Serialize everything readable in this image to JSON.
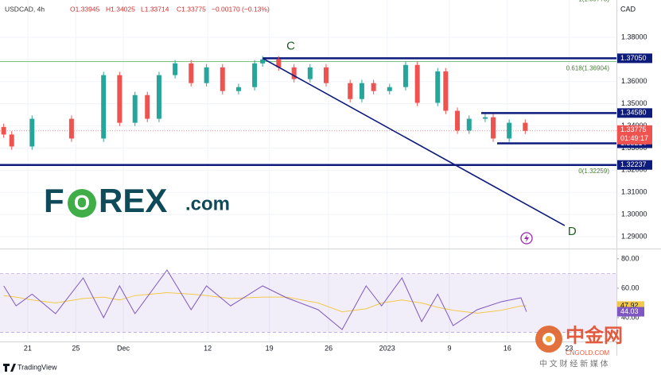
{
  "header": {
    "symbol": "USDCAD, 4h",
    "open": "O1.33945",
    "high": "H1.34025",
    "low": "L1.33714",
    "close": "C1.33775",
    "change": "−0.00170 (−0.13%)"
  },
  "currency": "CAD",
  "logo": {
    "f": "F",
    "o": "O",
    "rex": "REX",
    "com": ".com"
  },
  "watermark": {
    "name": "中金网",
    "site": "CNGOLD.COM",
    "tagline": "中 文 财 经 新 媒 体"
  },
  "tradingview": "TradingView",
  "chart_data": [
    {
      "type": "candlestick",
      "x": [
        0.6,
        1.9,
        5.2,
        11.6,
        16.8,
        19.4,
        21.9,
        23.9,
        25.8,
        28.4,
        31,
        33.5,
        36.1,
        38.7,
        41.3,
        42.6,
        45.2,
        47.7,
        50.3,
        52.9,
        56.8,
        58.7,
        60.6,
        63.2,
        65.8,
        67.7,
        71,
        72.3,
        74.2,
        76.1,
        78.7,
        80,
        82.6,
        85.2
      ],
      "open": [
        1.3395,
        1.3361,
        1.3307,
        1.3432,
        1.3343,
        1.3629,
        1.3414,
        1.3539,
        1.3432,
        1.3629,
        1.3682,
        1.3593,
        1.3664,
        1.3557,
        1.3575,
        1.3682,
        1.37,
        1.3664,
        1.3611,
        1.3664,
        1.3593,
        1.3521,
        1.3593,
        1.3557,
        1.3575,
        1.3675,
        1.3504,
        1.3646,
        1.3468,
        1.3379,
        1.3432,
        1.3439,
        1.3343,
        1.3414
      ],
      "high": [
        1.341,
        1.3376,
        1.3447,
        1.3447,
        1.3644,
        1.3644,
        1.3554,
        1.3554,
        1.3644,
        1.3697,
        1.3697,
        1.3679,
        1.3679,
        1.359,
        1.3697,
        1.3715,
        1.3715,
        1.3679,
        1.3679,
        1.3679,
        1.3608,
        1.3608,
        1.3608,
        1.359,
        1.369,
        1.369,
        1.3661,
        1.3661,
        1.3483,
        1.3447,
        1.3454,
        1.3454,
        1.3429,
        1.3429
      ],
      "low": [
        1.3346,
        1.3292,
        1.3292,
        1.3328,
        1.3328,
        1.3399,
        1.3399,
        1.3417,
        1.3417,
        1.3614,
        1.3578,
        1.3578,
        1.3542,
        1.3542,
        1.356,
        1.3667,
        1.3649,
        1.3596,
        1.3596,
        1.3578,
        1.3506,
        1.3506,
        1.3542,
        1.3542,
        1.356,
        1.3489,
        1.3489,
        1.3453,
        1.3364,
        1.3364,
        1.3417,
        1.3328,
        1.3328,
        1.3363
      ],
      "close": [
        1.3361,
        1.3307,
        1.3432,
        1.3343,
        1.3629,
        1.3414,
        1.3539,
        1.3432,
        1.3629,
        1.3682,
        1.3593,
        1.3664,
        1.3557,
        1.3575,
        1.3682,
        1.37,
        1.3664,
        1.3611,
        1.3664,
        1.3593,
        1.3521,
        1.3593,
        1.3557,
        1.3575,
        1.3675,
        1.3504,
        1.3646,
        1.3468,
        1.3379,
        1.3432,
        1.3439,
        1.3343,
        1.3414,
        1.33775
      ],
      "up_color": "#26a69a",
      "down_color": "#ef5350",
      "countdown": "01:49:17",
      "xlim": [
        0,
        100
      ],
      "ylim": [
        1.285,
        1.3968
      ],
      "xticks": [
        {
          "value": 4.5,
          "label": "21"
        },
        {
          "value": 12.3,
          "label": "25"
        },
        {
          "value": 20,
          "label": "Dec"
        },
        {
          "value": 33.7,
          "label": "12"
        },
        {
          "value": 43.7,
          "label": "19"
        },
        {
          "value": 53.3,
          "label": "26"
        },
        {
          "value": 62.8,
          "label": "2023"
        },
        {
          "value": 72.9,
          "label": "9"
        },
        {
          "value": 82.3,
          "label": "16"
        },
        {
          "value": 92.3,
          "label": "23"
        }
      ],
      "yticks": [
        {
          "value": 1.38,
          "label": "1.38000"
        },
        {
          "value": 1.37,
          "label": "1.37000"
        },
        {
          "value": 1.36,
          "label": "1.36000"
        },
        {
          "value": 1.35,
          "label": "1.35000"
        },
        {
          "value": 1.34,
          "label": "1.34000"
        },
        {
          "value": 1.33,
          "label": "1.33000"
        },
        {
          "value": 1.32,
          "label": "1.32000"
        },
        {
          "value": 1.31,
          "label": "1.31000"
        },
        {
          "value": 1.3,
          "label": "1.30000"
        },
        {
          "value": 1.29,
          "label": "1.29000"
        }
      ],
      "level_color": "#0d1b7c",
      "levels": [
        {
          "value": 1.3705,
          "label": "1.37050"
        },
        {
          "value": 1.3458,
          "label": "1.34580"
        },
        {
          "value": 1.33214,
          "label": "1.33214"
        },
        {
          "value": 1.32237,
          "label": "1.32237"
        }
      ],
      "fib_levels": [
        {
          "value": 1.39773,
          "label": "1(1.39773)",
          "color": "#9e9e9e"
        },
        {
          "value": 1.36904,
          "label": "0.618(1.36904)",
          "color": "#4caf50"
        },
        {
          "value": 1.32259,
          "label": "0(1.32259)",
          "color": "#9e9e9e"
        }
      ],
      "trendline": {
        "color": "#0d1b7c",
        "points": [
          {
            "label": "C",
            "x": 42.6,
            "y": 1.3705
          },
          {
            "label": "D",
            "x": 91.6,
            "y": 1.295
          }
        ]
      }
    },
    {
      "type": "line",
      "x": [
        0.6,
        2.6,
        5.2,
        9,
        13.5,
        16.8,
        19.4,
        21.9,
        27.1,
        31,
        33.5,
        37.4,
        42.6,
        46.5,
        51.6,
        55.5,
        59.4,
        61.9,
        65.2,
        68.4,
        71,
        73.5,
        77.4,
        81.3,
        84.5,
        85.4
      ],
      "series": [
        {
          "color": "#7e57c2",
          "values": [
            61.6,
            48,
            56,
            42.7,
            67,
            40,
            61.6,
            42.7,
            72.4,
            45.4,
            61.6,
            48,
            61.6,
            53.5,
            45.4,
            31.9,
            61.6,
            48,
            67,
            37.3,
            56,
            34.6,
            45.4,
            50.8,
            53.5,
            44.03
          ]
        },
        {
          "color": "#f2c94c",
          "values": [
            55,
            54,
            52,
            50,
            53,
            54,
            52,
            55,
            57,
            56,
            55,
            53,
            54,
            54,
            50,
            44,
            46,
            50,
            52,
            50,
            47,
            45,
            43,
            45,
            48,
            47.92
          ]
        }
      ],
      "xlim": [
        0,
        100
      ],
      "ylim": [
        23.8,
        85.9
      ],
      "yticks": [
        {
          "value": 80,
          "label": "80.00"
        },
        {
          "value": 60,
          "label": "60.00"
        },
        {
          "value": 40,
          "label": "40.00"
        }
      ],
      "band": [
        30,
        70
      ]
    }
  ]
}
